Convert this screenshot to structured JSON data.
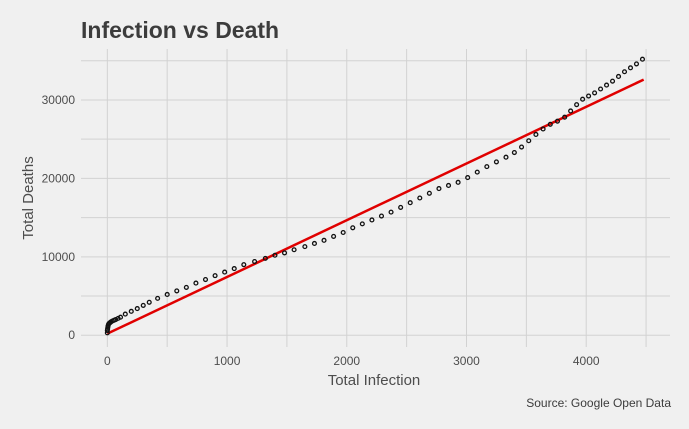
{
  "chart_data": {
    "type": "scatter",
    "title": "Infection vs Death",
    "xlabel": "Total Infection",
    "ylabel": "Total Deaths",
    "caption": "Source: Google Open Data",
    "xlim": [
      -220,
      4700
    ],
    "ylim": [
      -1500,
      36500
    ],
    "x_ticks": [
      0,
      1000,
      2000,
      3000,
      4000
    ],
    "y_ticks": [
      0,
      10000,
      20000,
      30000
    ],
    "grid": true,
    "legend": "none",
    "colors": {
      "points": "#111111",
      "trend": "#e00000",
      "background": "#f0f0f0",
      "grid": "#d2d2d2"
    },
    "series": [
      {
        "type": "scatter",
        "x": [
          0,
          0,
          2,
          4,
          6,
          10,
          15,
          22,
          30,
          40,
          55,
          70,
          90,
          110,
          150,
          200,
          250,
          300,
          350,
          420,
          500,
          580,
          660,
          740,
          820,
          900,
          980,
          1060,
          1140,
          1230,
          1320,
          1400,
          1480,
          1560,
          1650,
          1730,
          1810,
          1890,
          1970,
          2050,
          2130,
          2210,
          2290,
          2370,
          2450,
          2530,
          2610,
          2690,
          2770,
          2850,
          2930,
          3010,
          3090,
          3170,
          3250,
          3330,
          3400,
          3460,
          3520,
          3580,
          3640,
          3700,
          3760,
          3820,
          3870,
          3920,
          3970,
          4020,
          4070,
          4120,
          4170,
          4220,
          4270,
          4320,
          4370,
          4420,
          4470
        ],
        "y": [
          300,
          600,
          800,
          1000,
          1200,
          1400,
          1500,
          1600,
          1700,
          1800,
          1900,
          2000,
          2150,
          2300,
          2700,
          3050,
          3400,
          3800,
          4200,
          4700,
          5200,
          5650,
          6100,
          6650,
          7100,
          7600,
          8050,
          8500,
          9000,
          9400,
          9800,
          10200,
          10500,
          10900,
          11300,
          11700,
          12100,
          12600,
          13100,
          13700,
          14200,
          14700,
          15200,
          15700,
          16300,
          16900,
          17500,
          18100,
          18700,
          19100,
          19500,
          20100,
          20800,
          21500,
          22100,
          22700,
          23300,
          24000,
          24800,
          25600,
          26300,
          26900,
          27300,
          27800,
          28600,
          29400,
          30100,
          30500,
          30900,
          31400,
          31900,
          32400,
          33000,
          33600,
          34100,
          34600,
          35200
        ]
      },
      {
        "type": "line",
        "x": [
          0,
          4480
        ],
        "y": [
          200,
          32600
        ]
      }
    ]
  }
}
